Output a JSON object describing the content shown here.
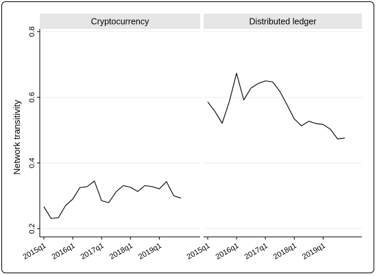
{
  "chart_data": {
    "type": "line",
    "ylabel": "Network transitivity",
    "ylim": [
      0.2,
      0.8
    ],
    "yticks": [
      0.2,
      0.4,
      0.6,
      0.8
    ],
    "ytick_labels": [
      "0.2",
      "0.4",
      "0.6",
      "0.8"
    ],
    "xticks": [
      "2015q1",
      "2016q1",
      "2017q1",
      "2018q1",
      "2019q1"
    ],
    "grid": true,
    "panels": [
      {
        "title": "Cryptocurrency",
        "series": [
          {
            "x": [
              "2015q1",
              "2015q2",
              "2015q3",
              "2015q4",
              "2016q1",
              "2016q2",
              "2016q3",
              "2016q4",
              "2017q1",
              "2017q2",
              "2017q3",
              "2017q4",
              "2018q1",
              "2018q2",
              "2018q3",
              "2018q4",
              "2019q1",
              "2019q2",
              "2019q3",
              "2019q4"
            ],
            "values": [
              0.267,
              0.231,
              0.233,
              0.27,
              0.29,
              0.325,
              0.328,
              0.345,
              0.285,
              0.279,
              0.312,
              0.331,
              0.326,
              0.313,
              0.331,
              0.328,
              0.321,
              0.343,
              0.3,
              0.293
            ]
          }
        ]
      },
      {
        "title": "Distributed ledger",
        "series": [
          {
            "x": [
              "2015q1",
              "2015q2",
              "2015q3",
              "2015q4",
              "2016q1",
              "2016q2",
              "2016q3",
              "2016q4",
              "2017q1",
              "2017q2",
              "2017q3",
              "2017q4",
              "2018q1",
              "2018q2",
              "2018q3",
              "2018q4",
              "2019q1",
              "2019q2",
              "2019q3",
              "2019q4"
            ],
            "values": [
              0.586,
              0.557,
              0.521,
              0.587,
              0.673,
              0.592,
              0.628,
              0.642,
              0.65,
              0.647,
              0.618,
              0.577,
              0.534,
              0.513,
              0.527,
              0.52,
              0.517,
              0.503,
              0.473,
              0.476
            ]
          }
        ]
      }
    ]
  }
}
